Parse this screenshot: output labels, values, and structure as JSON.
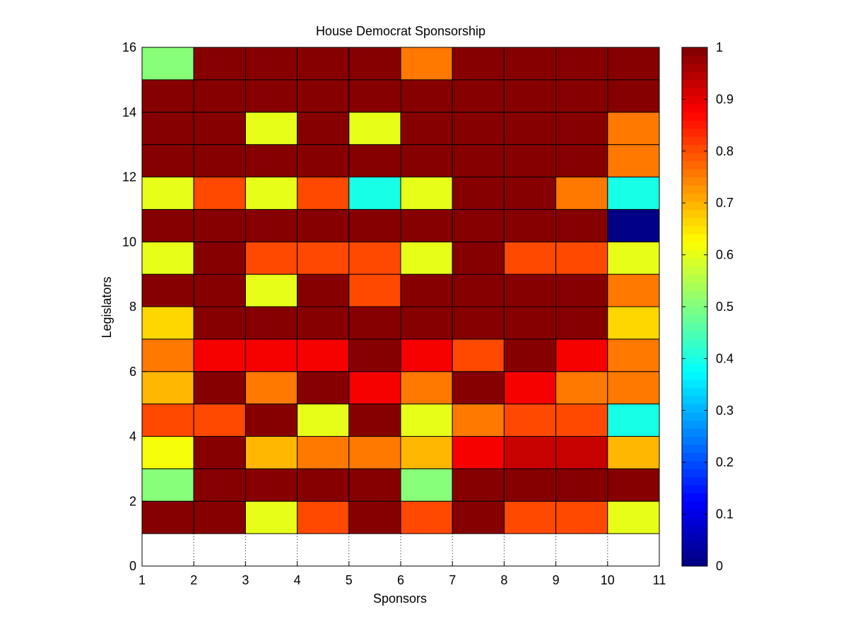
{
  "chart_data": {
    "type": "heatmap",
    "title": "House Democrat Sponsorship",
    "xlabel": "Sponsors",
    "ylabel": "Legislators",
    "xlim": [
      1,
      11
    ],
    "ylim": [
      0,
      16
    ],
    "x_ticks": [
      1,
      2,
      3,
      4,
      5,
      6,
      7,
      8,
      9,
      10,
      11
    ],
    "y_ticks": [
      0,
      2,
      4,
      6,
      8,
      10,
      12,
      14,
      16
    ],
    "colorbar": {
      "colormap": "jet",
      "range": [
        0,
        1
      ],
      "ticks": [
        0,
        0.1,
        0.2,
        0.3,
        0.4,
        0.5,
        0.6,
        0.7,
        0.8,
        0.9,
        1
      ]
    },
    "empty_row_note": "row 0 (y 0-1) is blank",
    "grid": true,
    "rows_bottom_to_top": [
      {
        "y": 1,
        "values": [
          1.0,
          1.0,
          0.6,
          0.8,
          1.0,
          0.8,
          1.0,
          0.8,
          0.8,
          0.6
        ]
      },
      {
        "y": 2,
        "values": [
          0.5,
          1.0,
          1.0,
          1.0,
          1.0,
          0.5,
          1.0,
          1.0,
          1.0,
          1.0
        ]
      },
      {
        "y": 3,
        "values": [
          0.62,
          1.0,
          0.7,
          0.76,
          0.76,
          0.7,
          0.88,
          0.93,
          0.93,
          0.7
        ]
      },
      {
        "y": 4,
        "values": [
          0.8,
          0.8,
          1.0,
          0.6,
          1.0,
          0.6,
          0.75,
          0.8,
          0.8,
          0.4
        ]
      },
      {
        "y": 5,
        "values": [
          0.69,
          1.0,
          0.76,
          1.0,
          0.88,
          0.76,
          1.0,
          0.88,
          0.76,
          0.76
        ]
      },
      {
        "y": 6,
        "values": [
          0.76,
          0.88,
          0.88,
          0.88,
          1.0,
          0.88,
          0.8,
          1.0,
          0.88,
          0.75
        ]
      },
      {
        "y": 7,
        "values": [
          0.67,
          1.0,
          1.0,
          1.0,
          1.0,
          1.0,
          1.0,
          1.0,
          1.0,
          0.67
        ]
      },
      {
        "y": 8,
        "values": [
          1.0,
          1.0,
          0.6,
          1.0,
          0.8,
          1.0,
          1.0,
          1.0,
          1.0,
          0.75
        ]
      },
      {
        "y": 9,
        "values": [
          0.6,
          1.0,
          0.8,
          0.8,
          0.8,
          0.6,
          1.0,
          0.8,
          0.8,
          0.6
        ]
      },
      {
        "y": 10,
        "values": [
          1.0,
          1.0,
          1.0,
          1.0,
          1.0,
          1.0,
          1.0,
          1.0,
          1.0,
          0.0
        ]
      },
      {
        "y": 11,
        "values": [
          0.6,
          0.8,
          0.6,
          0.8,
          0.4,
          0.6,
          1.0,
          1.0,
          0.75,
          0.4
        ]
      },
      {
        "y": 12,
        "values": [
          1.0,
          1.0,
          1.0,
          1.0,
          1.0,
          1.0,
          1.0,
          1.0,
          1.0,
          0.75
        ]
      },
      {
        "y": 13,
        "values": [
          1.0,
          1.0,
          0.6,
          1.0,
          0.6,
          1.0,
          1.0,
          1.0,
          1.0,
          0.75
        ]
      },
      {
        "y": 14,
        "values": [
          1.0,
          1.0,
          1.0,
          1.0,
          1.0,
          1.0,
          1.0,
          1.0,
          1.0,
          1.0
        ]
      },
      {
        "y": 15,
        "values": [
          0.5,
          1.0,
          1.0,
          1.0,
          1.0,
          0.75,
          1.0,
          1.0,
          1.0,
          1.0
        ]
      }
    ]
  }
}
